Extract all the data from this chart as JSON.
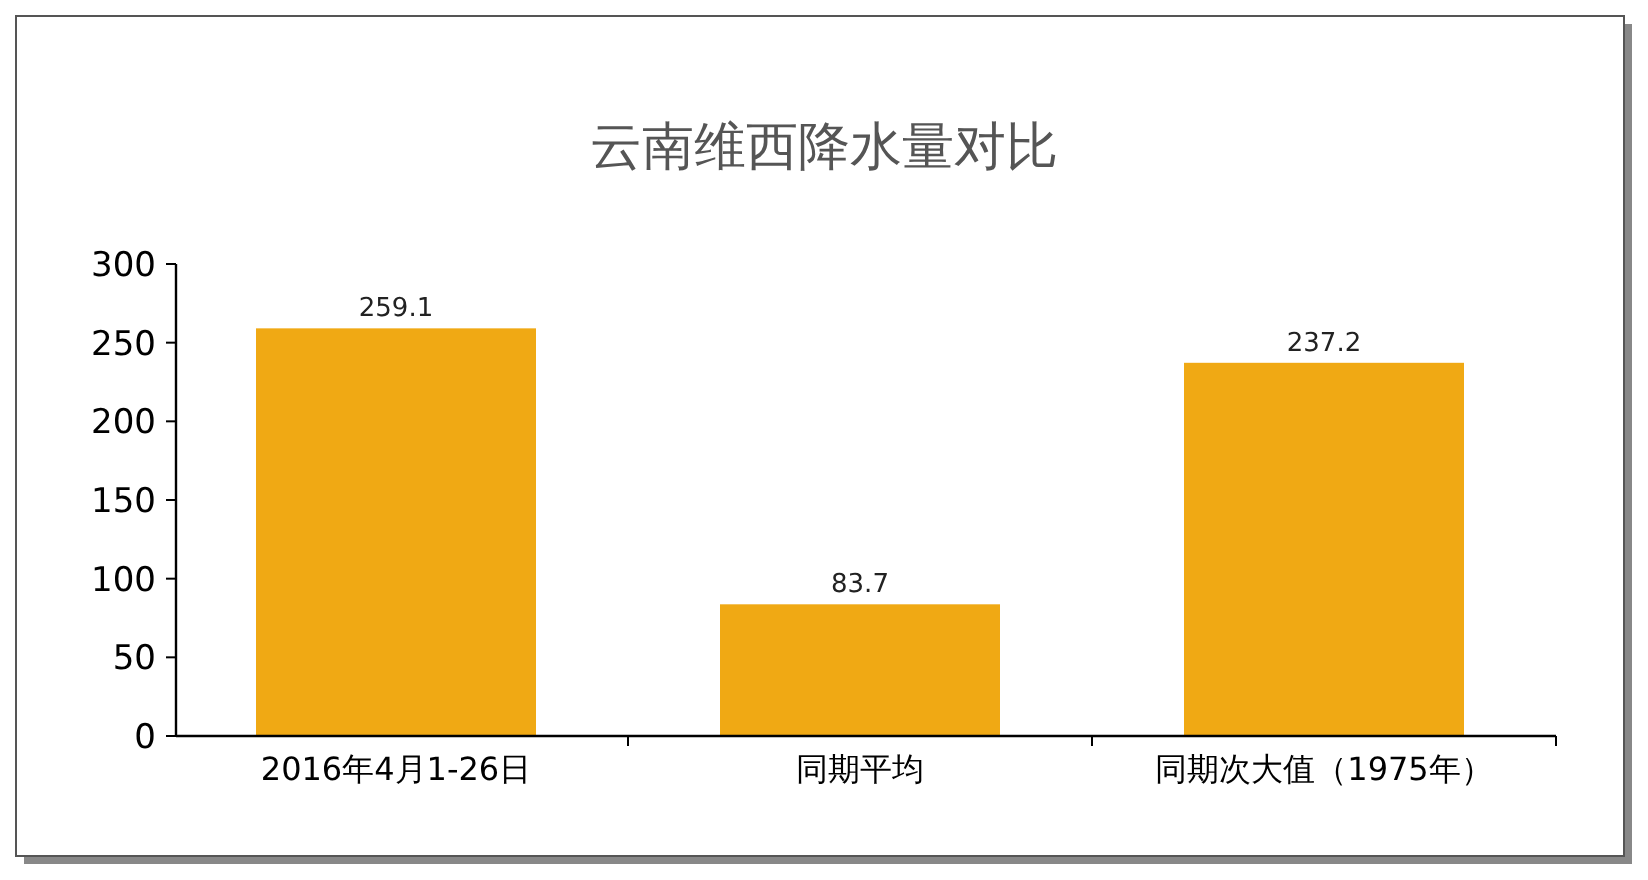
{
  "chart_data": {
    "type": "bar",
    "title": "云南维西降水量对比",
    "categories": [
      "2016年4月1-26日",
      "同期平均",
      "同期次大值（1975年）"
    ],
    "values": [
      259.1,
      83.7,
      237.2
    ],
    "color": "#f0a914",
    "ylim": [
      0,
      300
    ],
    "yticks": [
      0,
      50,
      100,
      150,
      200,
      250,
      300
    ],
    "data_labels": true,
    "grid": false
  }
}
